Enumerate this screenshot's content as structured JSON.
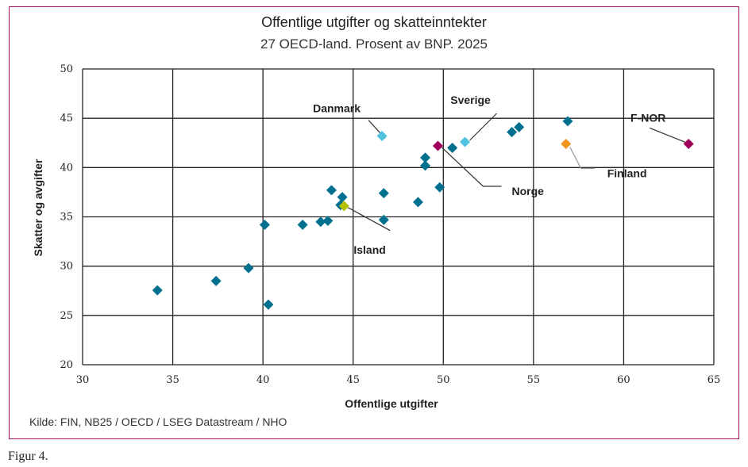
{
  "chart_data": {
    "type": "scatter",
    "title": "Offentlige utgifter og skatteinntekter",
    "subtitle": "27 OECD-land. Prosent av BNP. 2025",
    "xlabel": "Offentlige utgifter",
    "ylabel": "Skatter og avgifter",
    "xlim": [
      30,
      65
    ],
    "ylim": [
      20,
      50
    ],
    "xticks": [
      "30",
      "35",
      "40",
      "45",
      "50",
      "55",
      "60",
      "65"
    ],
    "yticks": [
      "20",
      "25",
      "30",
      "35",
      "40",
      "45",
      "50"
    ],
    "grid": true,
    "colors": {
      "default": "#00708f",
      "Danmark": "#4fc3e0",
      "Sverige": "#4fc3e0",
      "Norge": "#a0005a",
      "F-NOR": "#a0005a",
      "Finland": "#f0961e",
      "Island": "#b3bf00",
      "frame": "#9c0f5f"
    },
    "points": [
      {
        "x": 34.15,
        "y": 27.55,
        "label": null
      },
      {
        "x": 37.4,
        "y": 28.5,
        "label": null
      },
      {
        "x": 39.2,
        "y": 29.8,
        "label": null
      },
      {
        "x": 40.1,
        "y": 34.2,
        "label": null
      },
      {
        "x": 40.3,
        "y": 26.1,
        "label": null
      },
      {
        "x": 42.2,
        "y": 34.2,
        "label": null
      },
      {
        "x": 43.2,
        "y": 34.5,
        "label": null
      },
      {
        "x": 43.6,
        "y": 34.6,
        "label": null
      },
      {
        "x": 43.8,
        "y": 37.7,
        "label": null
      },
      {
        "x": 44.4,
        "y": 37.0,
        "label": null
      },
      {
        "x": 44.3,
        "y": 36.2,
        "label": null
      },
      {
        "x": 46.7,
        "y": 37.4,
        "label": null
      },
      {
        "x": 46.7,
        "y": 34.7,
        "label": null
      },
      {
        "x": 48.6,
        "y": 36.5,
        "label": null
      },
      {
        "x": 49.0,
        "y": 41.0,
        "label": null
      },
      {
        "x": 49.0,
        "y": 40.2,
        "label": null
      },
      {
        "x": 49.8,
        "y": 38.0,
        "label": null
      },
      {
        "x": 50.5,
        "y": 42.0,
        "label": null
      },
      {
        "x": 53.8,
        "y": 43.6,
        "label": null
      },
      {
        "x": 54.2,
        "y": 44.1,
        "label": null
      },
      {
        "x": 56.9,
        "y": 44.7,
        "label": null
      },
      {
        "x": 44.5,
        "y": 36.1,
        "label": "Island"
      },
      {
        "x": 46.6,
        "y": 43.2,
        "label": "Danmark"
      },
      {
        "x": 49.7,
        "y": 42.2,
        "label": "Norge"
      },
      {
        "x": 51.2,
        "y": 42.6,
        "label": "Sverige"
      },
      {
        "x": 56.8,
        "y": 42.4,
        "label": "Finland"
      },
      {
        "x": 63.6,
        "y": 42.4,
        "label": "F-NOR"
      }
    ]
  },
  "source": "Kilde: FIN, NB25 / OECD / LSEG Datastream / NHO",
  "figure_caption": "Figur 4."
}
